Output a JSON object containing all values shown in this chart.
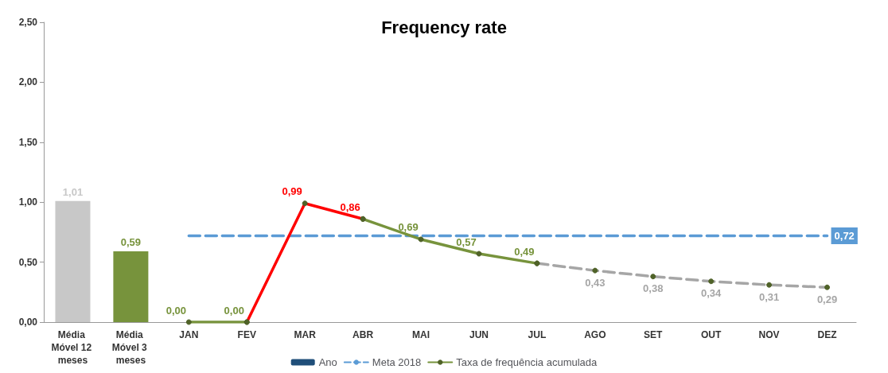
{
  "chart_data": {
    "type": "bar",
    "title": "Frequency rate",
    "categories": [
      "Média Móvel 12 meses",
      "Média Móvel 3 meses",
      "JAN",
      "FEV",
      "MAR",
      "ABR",
      "MAI",
      "JUN",
      "JUL",
      "AGO",
      "SET",
      "OUT",
      "NOV",
      "DEZ"
    ],
    "series": [
      {
        "name": "Ano",
        "color": "#1f4e79",
        "values": [
          null,
          null,
          null,
          null,
          null,
          null,
          null,
          null,
          null,
          null,
          null,
          null,
          null,
          null
        ]
      },
      {
        "type": "bar",
        "color": "#c8c8c8",
        "colors": [
          "#c8c8c8",
          "#77933c",
          null,
          null,
          null,
          null,
          null,
          null,
          null,
          null,
          null,
          null,
          null,
          null
        ],
        "values": [
          1.01,
          0.59,
          null,
          null,
          null,
          null,
          null,
          null,
          null,
          null,
          null,
          null,
          null,
          null
        ],
        "value_labels": [
          "1,01",
          "0,59",
          null,
          null,
          null,
          null,
          null,
          null,
          null,
          null,
          null,
          null,
          null,
          null
        ]
      },
      {
        "type": "line",
        "name": "Meta 2018",
        "color": "#5b9bd5",
        "line_style": "dashed",
        "marker": "none",
        "values": [
          null,
          null,
          0.72,
          0.72,
          0.72,
          0.72,
          0.72,
          0.72,
          0.72,
          0.72,
          0.72,
          0.72,
          0.72,
          0.72
        ],
        "value_labels": [
          null,
          null,
          null,
          null,
          null,
          null,
          null,
          null,
          null,
          null,
          null,
          null,
          null,
          "0,72"
        ]
      },
      {
        "type": "line",
        "color": "#ff0000",
        "marker": "circle",
        "line_style": "solid",
        "values": [
          null,
          null,
          null,
          0.0,
          0.99,
          0.86,
          null,
          null,
          null,
          null,
          null,
          null,
          null,
          null
        ],
        "value_labels": [
          null,
          null,
          null,
          null,
          "0,99",
          "0,86",
          null,
          null,
          null,
          null,
          null,
          null,
          null,
          null
        ]
      },
      {
        "type": "line",
        "color": "#a6a6a6",
        "marker": "circle",
        "line_style": "dashed",
        "values": [
          null,
          null,
          null,
          null,
          null,
          null,
          null,
          null,
          0.49,
          0.43,
          0.38,
          0.34,
          0.31,
          0.29
        ],
        "value_labels": [
          null,
          null,
          null,
          null,
          null,
          null,
          null,
          null,
          null,
          "0,43",
          "0,38",
          "0,34",
          "0,31",
          "0,29"
        ]
      },
      {
        "type": "line",
        "name": "Taxa de frequência acumulada",
        "color": "#77933c",
        "marker": "circle",
        "line_style": "solid",
        "values": [
          null,
          null,
          0.0,
          0.0,
          null,
          0.86,
          0.69,
          0.57,
          0.49,
          null,
          null,
          null,
          null,
          null
        ],
        "value_labels": [
          null,
          null,
          "0,00",
          "0,00",
          null,
          null,
          "0,69",
          "0,57",
          "0,49",
          null,
          null,
          null,
          null,
          null
        ]
      }
    ],
    "ylim": [
      0,
      2.5
    ],
    "yticks": [
      {
        "value": 0,
        "label": "0,00"
      },
      {
        "value": 0.5,
        "label": "0,50"
      },
      {
        "value": 1,
        "label": "1,00"
      },
      {
        "value": 1.5,
        "label": "1,50"
      },
      {
        "value": 2,
        "label": "2,00"
      },
      {
        "value": 2.5,
        "label": "2,50"
      }
    ],
    "legend": "bottom"
  }
}
